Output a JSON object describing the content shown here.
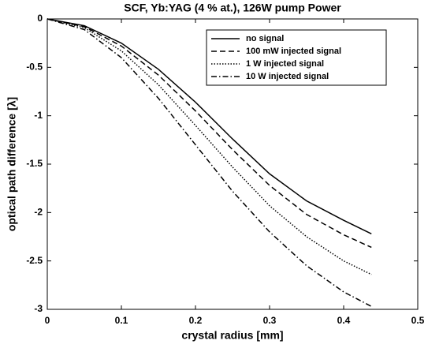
{
  "chart_data": {
    "type": "line",
    "title": "SCF, Yb:YAG (4 % at.), 126W pump Power",
    "xlabel": "crystal radius [mm]",
    "ylabel": "optical path difference [λ]",
    "x": [
      0,
      0.05,
      0.1,
      0.15,
      0.2,
      0.25,
      0.3,
      0.35,
      0.4,
      0.4375
    ],
    "series": [
      {
        "name": "no signal",
        "color": "#000000",
        "dash": "solid",
        "values": [
          0,
          -0.07,
          -0.25,
          -0.52,
          -0.86,
          -1.24,
          -1.6,
          -1.88,
          -2.08,
          -2.22
        ]
      },
      {
        "name": "100 mW injected signal",
        "color": "#000000",
        "dash": "dashed",
        "values": [
          0,
          -0.08,
          -0.28,
          -0.58,
          -0.95,
          -1.35,
          -1.72,
          -2.02,
          -2.23,
          -2.36
        ]
      },
      {
        "name": "1 W injected signal",
        "color": "#000000",
        "dash": "dotted",
        "values": [
          0,
          -0.09,
          -0.33,
          -0.68,
          -1.1,
          -1.53,
          -1.93,
          -2.25,
          -2.5,
          -2.64
        ]
      },
      {
        "name": "10 W injected signal",
        "color": "#000000",
        "dash": "dashdot",
        "values": [
          0,
          -0.11,
          -0.4,
          -0.82,
          -1.3,
          -1.78,
          -2.2,
          -2.55,
          -2.82,
          -2.97
        ]
      }
    ],
    "xlim": [
      0,
      0.5
    ],
    "xticks": [
      0,
      0.1,
      0.2,
      0.3,
      0.4,
      0.5
    ],
    "ylim": [
      -3,
      0
    ],
    "yticks": [
      0,
      -0.5,
      -1,
      -1.5,
      -2,
      -2.5,
      -3
    ],
    "legend": "upper right"
  }
}
